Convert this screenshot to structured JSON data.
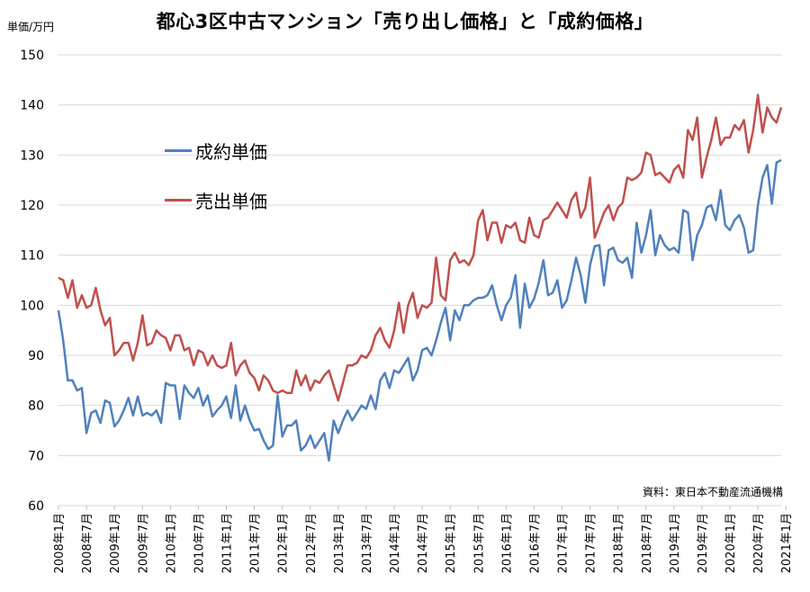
{
  "chart_data": {
    "type": "line",
    "title": "都心3区中古マンション「売り出し価格」と「成約価格」",
    "y_unit": "単価/万円",
    "source": "資料：東日本不動産流通機構",
    "ylim": [
      60,
      150
    ],
    "yticks": [
      60,
      70,
      80,
      90,
      100,
      110,
      120,
      130,
      140,
      150
    ],
    "grid": true,
    "legend_position": "top-left, inside plot",
    "x_start": "2008年1月",
    "x_end": "2021年1月",
    "xtick_labels": [
      "2008年1月",
      "2008年7月",
      "2009年1月",
      "2009年7月",
      "2010年1月",
      "2010年7月",
      "2011年1月",
      "2011年7月",
      "2012年1月",
      "2012年7月",
      "2013年1月",
      "2013年7月",
      "2014年1月",
      "2014年7月",
      "2015年1月",
      "2015年7月",
      "2016年1月",
      "2016年7月",
      "2017年1月",
      "2017年7月",
      "2018年1月",
      "2018年7月",
      "2019年1月",
      "2019年7月",
      "2020年1月",
      "2020年7月",
      "2021年1月"
    ],
    "series": [
      {
        "name": "成約単価",
        "color": "#4F81BD",
        "values": [
          99.0,
          93.0,
          85.0,
          85.0,
          83.0,
          83.5,
          74.5,
          78.5,
          79.0,
          76.5,
          81.0,
          80.5,
          75.8,
          77.0,
          79.0,
          81.5,
          78.0,
          81.8,
          78.0,
          78.5,
          78.0,
          79.0,
          76.5,
          84.5,
          84.0,
          84.0,
          77.3,
          84.0,
          82.5,
          81.5,
          83.5,
          80.0,
          82.0,
          77.8,
          79.0,
          80.0,
          81.8,
          77.5,
          84.0,
          77.0,
          80.0,
          77.0,
          75.0,
          75.3,
          73.0,
          71.3,
          72.0,
          82.0,
          73.8,
          76.0,
          76.0,
          77.0,
          71.0,
          72.0,
          74.0,
          71.5,
          73.0,
          74.5,
          69.0,
          77.0,
          74.5,
          77.0,
          79.0,
          77.0,
          78.5,
          80.0,
          79.3,
          82.0,
          79.3,
          85.0,
          86.5,
          83.5,
          87.0,
          86.5,
          88.0,
          89.5,
          85.0,
          87.0,
          91.0,
          91.5,
          90.0,
          93.0,
          96.5,
          99.5,
          93.0,
          99.0,
          97.0,
          100.0,
          100.0,
          101.0,
          101.5,
          101.5,
          102.0,
          104.0,
          100.0,
          97.0,
          100.0,
          101.5,
          106.0,
          95.5,
          104.3,
          99.5,
          101.3,
          104.5,
          109.0,
          102.0,
          102.5,
          105.0,
          99.5,
          101.0,
          105.0,
          109.5,
          106.0,
          100.5,
          108.0,
          111.8,
          112.0,
          104.0,
          111.0,
          111.5,
          109.0,
          108.5,
          109.5,
          105.5,
          116.5,
          110.5,
          114.0,
          119.0,
          110.0,
          114.0,
          112.0,
          111.0,
          111.5,
          110.5,
          119.0,
          118.5,
          109.0,
          114.0,
          116.0,
          119.5,
          120.0,
          117.0,
          123.0,
          116.0,
          115.0,
          117.0,
          118.0,
          115.5,
          110.5,
          111.0,
          120.0,
          125.5,
          128.0,
          120.3,
          128.5,
          129.0
        ]
      },
      {
        "name": "売出単価",
        "color": "#C0504D",
        "values": [
          105.5,
          105.0,
          101.5,
          105.0,
          99.5,
          102.0,
          99.5,
          100.0,
          103.5,
          99.0,
          96.0,
          97.5,
          90.0,
          91.0,
          92.5,
          92.5,
          89.0,
          92.5,
          98.0,
          92.0,
          92.5,
          95.0,
          94.0,
          93.5,
          91.0,
          94.0,
          94.0,
          91.0,
          91.5,
          88.0,
          91.0,
          90.5,
          88.0,
          90.0,
          88.0,
          87.5,
          88.0,
          92.5,
          86.0,
          88.0,
          89.0,
          86.5,
          85.5,
          83.0,
          86.0,
          85.0,
          83.0,
          82.5,
          83.0,
          82.5,
          82.5,
          87.0,
          84.0,
          86.0,
          83.0,
          85.0,
          84.5,
          86.0,
          87.0,
          84.0,
          81.0,
          84.5,
          88.0,
          88.0,
          88.5,
          90.0,
          89.5,
          91.0,
          94.0,
          95.5,
          93.0,
          91.5,
          95.0,
          100.5,
          94.5,
          100.0,
          102.5,
          97.5,
          100.0,
          99.5,
          100.5,
          109.5,
          102.0,
          101.0,
          109.0,
          110.5,
          108.5,
          109.0,
          108.0,
          110.0,
          117.0,
          119.0,
          113.0,
          116.5,
          116.5,
          112.5,
          116.0,
          115.5,
          116.5,
          113.0,
          112.5,
          117.5,
          114.0,
          113.5,
          117.0,
          117.5,
          119.0,
          120.5,
          119.0,
          117.5,
          121.0,
          122.5,
          117.5,
          119.5,
          125.5,
          113.5,
          116.0,
          118.5,
          120.0,
          117.0,
          119.5,
          120.5,
          125.5,
          125.0,
          125.5,
          126.5,
          130.5,
          130.0,
          126.0,
          126.5,
          125.5,
          124.5,
          127.0,
          128.0,
          125.5,
          135.0,
          133.0,
          137.5,
          125.5,
          129.5,
          133.0,
          137.5,
          132.0,
          133.5,
          133.5,
          136.0,
          135.0,
          137.0,
          130.5,
          135.0,
          142.0,
          134.5,
          139.5,
          137.5,
          136.5,
          139.5
        ]
      }
    ]
  }
}
